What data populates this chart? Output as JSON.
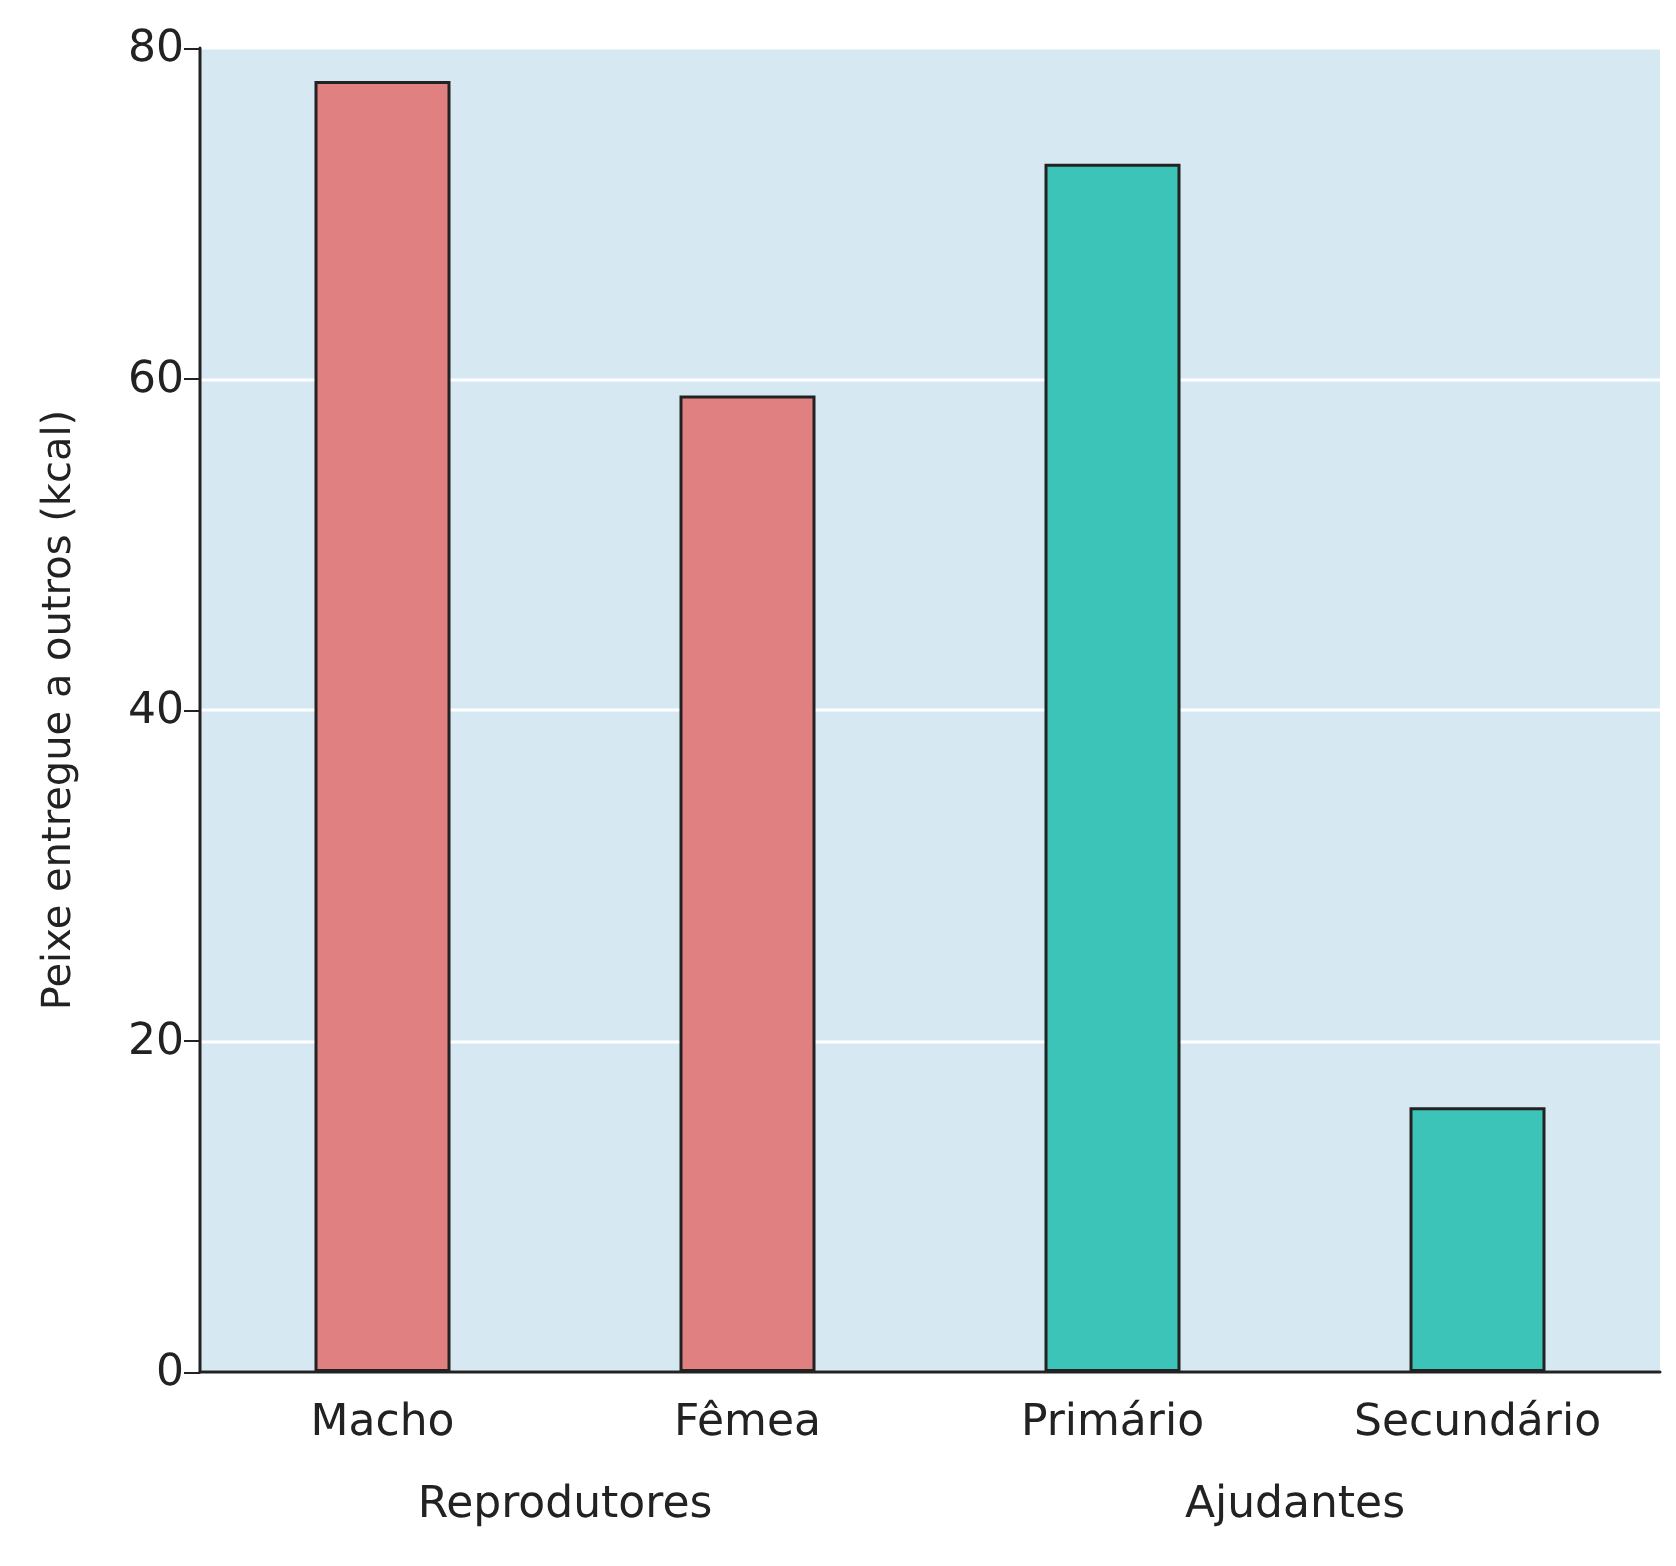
{
  "chart_data": {
    "type": "bar",
    "ylabel": "Peixe entregue a outros (kcal)",
    "categories": [
      "Macho",
      "Fêmea",
      "Primário",
      "Secundário"
    ],
    "values": [
      78,
      59,
      73,
      16
    ],
    "colors": [
      "#e08080",
      "#e08080",
      "#3cc4b8",
      "#3cc4b8"
    ],
    "ylim": [
      0,
      80
    ],
    "yticks": [
      0,
      20,
      40,
      60,
      80
    ],
    "grid": "y",
    "annotations": [
      "Reprodutores",
      "Ajudantes"
    ]
  }
}
